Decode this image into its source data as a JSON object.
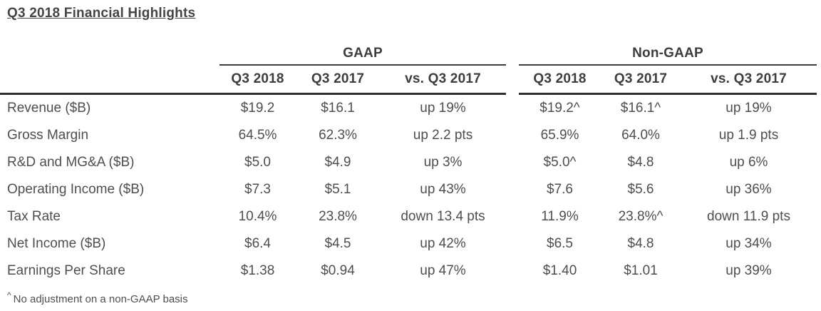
{
  "title": "Q3 2018 Financial Highlights",
  "table": {
    "group_headers": {
      "gaap": "GAAP",
      "non_gaap": "Non-GAAP"
    },
    "column_headers": {
      "gaap": [
        "Q3 2018",
        "Q3 2017",
        "vs. Q3 2017"
      ],
      "non_gaap": [
        "Q3 2018",
        "Q3 2017",
        "vs. Q3 2017"
      ]
    },
    "rows": [
      {
        "label": "Revenue ($B)",
        "gaap": [
          "$19.2",
          "$16.1",
          "up 19%"
        ],
        "non_gaap": [
          "$19.2^",
          "$16.1^",
          "up 19%"
        ]
      },
      {
        "label": "Gross Margin",
        "gaap": [
          "64.5%",
          "62.3%",
          "up 2.2 pts"
        ],
        "non_gaap": [
          "65.9%",
          "64.0%",
          "up 1.9 pts"
        ]
      },
      {
        "label": "R&D and MG&A ($B)",
        "gaap": [
          "$5.0",
          "$4.9",
          "up 3%"
        ],
        "non_gaap": [
          "$5.0^",
          "$4.8",
          "up 6%"
        ]
      },
      {
        "label": "Operating Income ($B)",
        "gaap": [
          "$7.3",
          "$5.1",
          "up 43%"
        ],
        "non_gaap": [
          "$7.6",
          "$5.6",
          "up 36%"
        ]
      },
      {
        "label": "Tax Rate",
        "gaap": [
          "10.4%",
          "23.8%",
          "down 13.4 pts"
        ],
        "non_gaap": [
          "11.9%",
          "23.8%^",
          "down 11.9 pts"
        ]
      },
      {
        "label": "Net Income ($B)",
        "gaap": [
          "$6.4",
          "$4.5",
          "up 42%"
        ],
        "non_gaap": [
          "$6.5",
          "$4.8",
          "up 34%"
        ]
      },
      {
        "label": "Earnings Per Share",
        "gaap": [
          "$1.38",
          "$0.94",
          "up 47%"
        ],
        "non_gaap": [
          "$1.40",
          "$1.01",
          "up 39%"
        ]
      }
    ]
  },
  "footnote": {
    "marker": "^",
    "text": "No adjustment on a non-GAAP basis"
  },
  "colors": {
    "background": "#ffffff",
    "text": "#4e4e4e",
    "heading": "#3d3d3d",
    "rule_heavy": "#2e2e2e",
    "rule_light": "#3c3c3c"
  }
}
